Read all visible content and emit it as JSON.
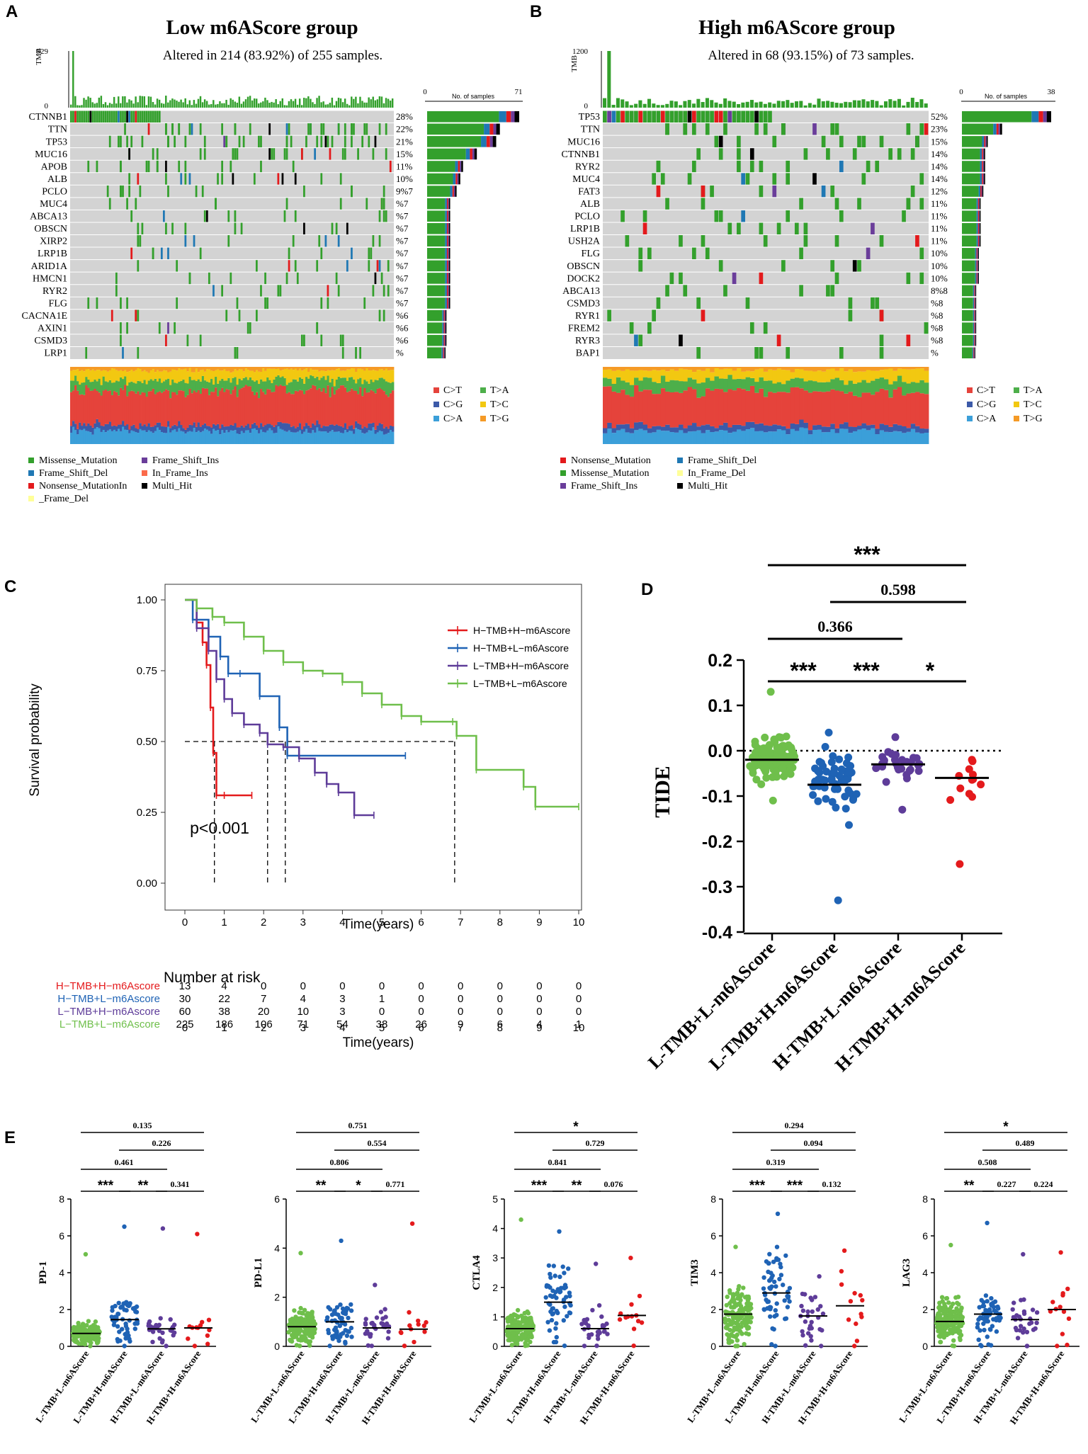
{
  "panels": {
    "A": {
      "letter": "A",
      "title": "Low m6AScore group",
      "subtitle": "Altered in 214 (83.92%) of 255 samples.",
      "tmb_label": "TMB",
      "tmb_max": "929",
      "tmb_min": "0",
      "samples_axis": {
        "min": "0",
        "max": "71",
        "label": "No. of samples"
      },
      "genes": [
        "CTNNB1",
        "TTN",
        "TP53",
        "MUC16",
        "APOB",
        "ALB",
        "PCLO",
        "MUC4",
        "ABCA13",
        "OBSCN",
        "XIRP2",
        "LRP1B",
        "ARID1A",
        "HMCN1",
        "RYR2",
        "FLG",
        "CACNA1E",
        "AXIN1",
        "CSMD3",
        "LRP1"
      ],
      "percents": [
        "28%",
        "22%",
        "21%",
        "15%",
        "11%",
        "10%",
        "9%7",
        "%7",
        "%7",
        "%7",
        "%7",
        "%7",
        "%7",
        "%7",
        "%7",
        "%7",
        "%6",
        "%6",
        "%6",
        "%"
      ],
      "bar_fraction": [
        1.0,
        0.79,
        0.75,
        0.54,
        0.39,
        0.36,
        0.32,
        0.25,
        0.25,
        0.25,
        0.25,
        0.25,
        0.25,
        0.25,
        0.25,
        0.25,
        0.21,
        0.21,
        0.21,
        0.2
      ],
      "substitution_legend": [
        "C>T",
        "T>A",
        "C>G",
        "T>C",
        "C>A",
        "T>G"
      ],
      "variant_legend": [
        "Missense_Mutation",
        "Frame_Shift_Ins",
        "Frame_Shift_Del",
        "In_Frame_Ins",
        "Nonsense_MutationIn",
        "Multi_Hit",
        "_Frame_Del"
      ]
    },
    "B": {
      "letter": "B",
      "title": "High m6AScore group",
      "subtitle": "Altered in 68 (93.15%) of 73 samples.",
      "tmb_label": "TMB",
      "tmb_max": "1200",
      "tmb_min": "0",
      "samples_axis": {
        "min": "0",
        "max": "38",
        "label": "No. of samples"
      },
      "genes": [
        "TP53",
        "TTN",
        "MUC16",
        "CTNNB1",
        "RYR2",
        "MUC4",
        "FAT3",
        "ALB",
        "PCLO",
        "LRP1B",
        "USH2A",
        "FLG",
        "OBSCN",
        "DOCK2",
        "ABCA13",
        "CSMD3",
        "RYR1",
        "FREM2",
        "RYR3",
        "BAP1"
      ],
      "percents": [
        "52%",
        "23%",
        "15%",
        "14%",
        "14%",
        "14%",
        "12%",
        "11%",
        "11%",
        "11%",
        "11%",
        "10%",
        "10%",
        "10%",
        "8%8",
        "%8",
        "%8",
        "%8",
        "%8",
        "%"
      ],
      "bar_fraction": [
        1.0,
        0.45,
        0.29,
        0.26,
        0.26,
        0.26,
        0.24,
        0.21,
        0.21,
        0.21,
        0.21,
        0.19,
        0.19,
        0.19,
        0.16,
        0.16,
        0.16,
        0.16,
        0.16,
        0.15
      ],
      "substitution_legend": [
        "C>T",
        "T>A",
        "C>G",
        "T>C",
        "C>A",
        "T>G"
      ],
      "variant_legend": [
        "Nonsense_Mutation",
        "Frame_Shift_Del",
        "Missense_Mutation",
        "In_Frame_Del",
        "Frame_Shift_Ins",
        "Multi_Hit"
      ]
    },
    "C": {
      "letter": "C"
    },
    "D": {
      "letter": "D"
    },
    "E": {
      "letter": "E"
    }
  },
  "colors": {
    "missense": "#33a02c",
    "frameshift_del": "#1f78b4",
    "nonsense": "#e31a1c",
    "frameshift_ins": "#6a3d9a",
    "inframe_ins": "#fb6a4a",
    "inframe_del": "#ffff99",
    "multi_hit": "#000000",
    "grey_cell": "#d3d3d3",
    "ct": "#e5433b",
    "ta": "#4daf4a",
    "cg": "#3c5aa8",
    "tc": "#f2c811",
    "ca": "#3b9fd9",
    "tg": "#f59a26",
    "red": "#e41a1c",
    "blue": "#1f63b5",
    "purple": "#5e3c99",
    "green": "#6fbf4b"
  },
  "chart_data": [
    {
      "panel": "C",
      "type": "line",
      "title": "",
      "xlabel": "Time(years)",
      "ylabel": "Survival probability",
      "xlim": [
        0,
        10
      ],
      "ylim": [
        0,
        1
      ],
      "x_ticks": [
        "0",
        "1",
        "2",
        "3",
        "4",
        "5",
        "6",
        "7",
        "8",
        "9",
        "10"
      ],
      "y_ticks": [
        "0.00",
        "0.25",
        "0.50",
        "0.75",
        "1.00"
      ],
      "annotation": "p<0.001",
      "median_survival": [
        0.75,
        2.1,
        2.55,
        6.85
      ],
      "series": [
        {
          "name": "H−TMB+H−m6Ascore",
          "color": "#e41a1c",
          "x": [
            0,
            0.3,
            0.45,
            0.55,
            0.65,
            0.72,
            0.8,
            1.0,
            1.7
          ],
          "y": [
            1.0,
            0.92,
            0.85,
            0.77,
            0.62,
            0.46,
            0.31,
            0.31,
            0.31
          ]
        },
        {
          "name": "H−TMB+L−m6Ascore",
          "color": "#1f63b5",
          "x": [
            0,
            0.2,
            0.6,
            0.9,
            1.1,
            1.4,
            1.9,
            2.4,
            2.6,
            5.6
          ],
          "y": [
            1.0,
            0.93,
            0.87,
            0.8,
            0.74,
            0.74,
            0.66,
            0.55,
            0.45,
            0.45
          ]
        },
        {
          "name": "L−TMB+H−m6Ascore",
          "color": "#5e3c99",
          "x": [
            0,
            0.3,
            0.6,
            0.8,
            1.0,
            1.2,
            1.5,
            1.9,
            2.1,
            2.5,
            2.9,
            3.3,
            3.6,
            3.9,
            4.3,
            4.8
          ],
          "y": [
            1.0,
            0.9,
            0.82,
            0.72,
            0.65,
            0.6,
            0.56,
            0.53,
            0.49,
            0.48,
            0.44,
            0.39,
            0.35,
            0.32,
            0.24,
            0.24
          ]
        },
        {
          "name": "L−TMB+L−m6Ascore",
          "color": "#6fbf4b",
          "x": [
            0,
            0.3,
            0.7,
            1.0,
            1.5,
            2.0,
            2.5,
            3.0,
            3.5,
            4.0,
            4.5,
            5.0,
            5.5,
            6.0,
            6.8,
            6.9,
            7.4,
            8.6,
            8.9,
            10.0
          ],
          "y": [
            1.0,
            0.97,
            0.94,
            0.92,
            0.87,
            0.82,
            0.78,
            0.75,
            0.74,
            0.71,
            0.67,
            0.63,
            0.59,
            0.57,
            0.57,
            0.52,
            0.4,
            0.34,
            0.27,
            0.27
          ]
        }
      ],
      "risk_table": {
        "title": "Number at risk",
        "xlabel": "Time(years)",
        "times": [
          "0",
          "1",
          "2",
          "3",
          "4",
          "5",
          "6",
          "7",
          "8",
          "9",
          "10"
        ],
        "rows": [
          {
            "name": "H−TMB+H−m6Ascore",
            "color": "#e41a1c",
            "values": [
              "13",
              "4",
              "0",
              "0",
              "0",
              "0",
              "0",
              "0",
              "0",
              "0",
              "0"
            ]
          },
          {
            "name": "H−TMB+L−m6Ascore",
            "color": "#1f63b5",
            "values": [
              "30",
              "22",
              "7",
              "4",
              "3",
              "1",
              "0",
              "0",
              "0",
              "0",
              "0"
            ]
          },
          {
            "name": "L−TMB+H−m6Ascore",
            "color": "#5e3c99",
            "values": [
              "60",
              "38",
              "20",
              "10",
              "3",
              "0",
              "0",
              "0",
              "0",
              "0",
              "0"
            ]
          },
          {
            "name": "L−TMB+L−m6Ascore",
            "color": "#6fbf4b",
            "values": [
              "225",
              "186",
              "106",
              "71",
              "54",
              "38",
              "26",
              "9",
              "6",
              "4",
              "1"
            ]
          }
        ]
      }
    },
    {
      "panel": "D",
      "type": "scatter",
      "title": "",
      "xlabel": "",
      "ylabel": "TIDE",
      "ylim": [
        -0.4,
        0.2
      ],
      "y_ticks": [
        "0.2",
        "0.1",
        "0.0",
        "-0.1",
        "-0.2",
        "-0.3",
        "-0.4"
      ],
      "categories": [
        "L-TMB+L-m6AScore",
        "L-TMB+H-m6AScore",
        "H-TMB+L-m6AScore",
        "H-TMB+H-m6AScore"
      ],
      "colors": [
        "#6fbf4b",
        "#1f63b5",
        "#5e3c99",
        "#e41a1c"
      ],
      "medians": [
        -0.02,
        -0.075,
        -0.03,
        -0.06
      ],
      "ranges": [
        [
          -0.11,
          0.13
        ],
        [
          -0.33,
          0.04
        ],
        [
          -0.13,
          0.03
        ],
        [
          -0.25,
          -0.02
        ]
      ],
      "counts": [
        225,
        60,
        30,
        13
      ],
      "comparisons": [
        {
          "from": 0,
          "to": 3,
          "label": "***"
        },
        {
          "from": 1,
          "to": 3,
          "label": "0.598"
        },
        {
          "from": 0,
          "to": 2,
          "label": "0.366"
        },
        {
          "from": 0,
          "to": 1,
          "label": "***"
        },
        {
          "from": 1,
          "to": 2,
          "label": "***"
        },
        {
          "from": 2,
          "to": 3,
          "label": "*"
        }
      ]
    },
    {
      "panel": "E",
      "type": "scatter",
      "categories": [
        "L-TMB+L-m6AScore",
        "L-TMB+H-m6AScore",
        "H-TMB+L-m6AScore",
        "H-TMB+H-m6AScore"
      ],
      "subplots": [
        {
          "ylabel": "PD-1",
          "ylim": [
            0,
            8
          ],
          "y_ticks": [
            "0",
            "2",
            "4",
            "6",
            "8"
          ],
          "medians": [
            0.7,
            1.45,
            0.95,
            1.0
          ],
          "maxes": [
            5.0,
            6.5,
            6.4,
            6.1
          ],
          "comparisons": [
            {
              "from": 0,
              "to": 3,
              "label": "0.135"
            },
            {
              "from": 1,
              "to": 3,
              "label": "0.226"
            },
            {
              "from": 0,
              "to": 2,
              "label": "0.461"
            },
            {
              "from": 0,
              "to": 1,
              "label": "***"
            },
            {
              "from": 1,
              "to": 2,
              "label": "**"
            },
            {
              "from": 2,
              "to": 3,
              "label": "0.341"
            }
          ]
        },
        {
          "ylabel": "PD-L1",
          "ylim": [
            0,
            6
          ],
          "y_ticks": [
            "0",
            "2",
            "4",
            "6"
          ],
          "medians": [
            0.8,
            1.0,
            0.75,
            0.7
          ],
          "maxes": [
            3.8,
            4.3,
            2.5,
            5.0
          ],
          "comparisons": [
            {
              "from": 0,
              "to": 3,
              "label": "0.751"
            },
            {
              "from": 1,
              "to": 3,
              "label": "0.554"
            },
            {
              "from": 0,
              "to": 2,
              "label": "0.806"
            },
            {
              "from": 0,
              "to": 1,
              "label": "**"
            },
            {
              "from": 1,
              "to": 2,
              "label": "*"
            },
            {
              "from": 2,
              "to": 3,
              "label": "0.771"
            }
          ]
        },
        {
          "ylabel": "CTLA4",
          "ylim": [
            0,
            5
          ],
          "y_ticks": [
            "0",
            "1",
            "2",
            "3",
            "4",
            "5"
          ],
          "medians": [
            0.6,
            1.5,
            0.6,
            1.05
          ],
          "maxes": [
            4.3,
            3.9,
            2.8,
            3.0
          ],
          "comparisons": [
            {
              "from": 0,
              "to": 3,
              "label": "*"
            },
            {
              "from": 1,
              "to": 3,
              "label": "0.729"
            },
            {
              "from": 0,
              "to": 2,
              "label": "0.841"
            },
            {
              "from": 0,
              "to": 1,
              "label": "***"
            },
            {
              "from": 1,
              "to": 2,
              "label": "**"
            },
            {
              "from": 2,
              "to": 3,
              "label": "0.076"
            }
          ]
        },
        {
          "ylabel": "TIM3",
          "ylim": [
            0,
            8
          ],
          "y_ticks": [
            "0",
            "2",
            "4",
            "6",
            "8"
          ],
          "medians": [
            1.75,
            2.9,
            1.65,
            2.2
          ],
          "maxes": [
            5.4,
            7.2,
            3.8,
            5.2
          ],
          "comparisons": [
            {
              "from": 0,
              "to": 3,
              "label": "0.294"
            },
            {
              "from": 1,
              "to": 3,
              "label": "0.094"
            },
            {
              "from": 0,
              "to": 2,
              "label": "0.319"
            },
            {
              "from": 0,
              "to": 1,
              "label": "***"
            },
            {
              "from": 1,
              "to": 2,
              "label": "***"
            },
            {
              "from": 2,
              "to": 3,
              "label": "0.132"
            }
          ]
        },
        {
          "ylabel": "LAG3",
          "ylim": [
            0,
            8
          ],
          "y_ticks": [
            "0",
            "2",
            "4",
            "6",
            "8"
          ],
          "medians": [
            1.35,
            1.75,
            1.45,
            2.0
          ],
          "maxes": [
            5.5,
            6.7,
            5.0,
            5.1
          ],
          "comparisons": [
            {
              "from": 0,
              "to": 3,
              "label": "*"
            },
            {
              "from": 1,
              "to": 3,
              "label": "0.489"
            },
            {
              "from": 0,
              "to": 2,
              "label": "0.508"
            },
            {
              "from": 0,
              "to": 1,
              "label": "**"
            },
            {
              "from": 1,
              "to": 2,
              "label": "0.227"
            },
            {
              "from": 2,
              "to": 3,
              "label": "0.224"
            }
          ]
        }
      ]
    }
  ]
}
